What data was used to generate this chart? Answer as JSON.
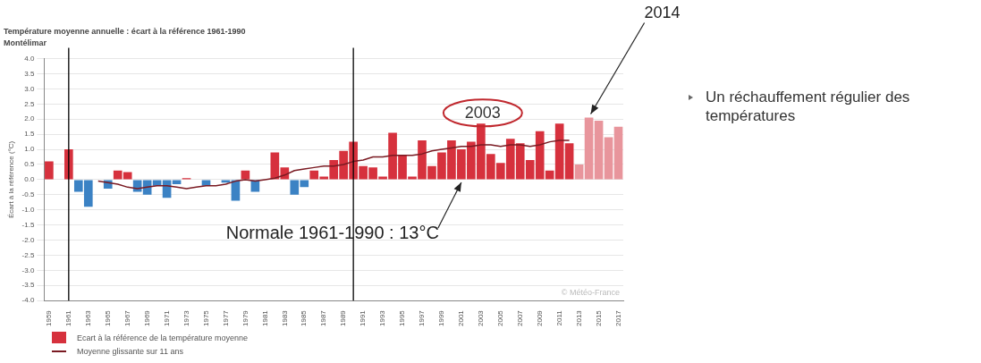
{
  "chart_data": {
    "type": "bar",
    "title": "Température moyenne annuelle : écart à la référence 1961-1990",
    "subtitle": "Montélimar",
    "ylabel": "Écart à la référence (°C)",
    "x": [
      1959,
      1960,
      1961,
      1962,
      1963,
      1964,
      1965,
      1966,
      1967,
      1968,
      1969,
      1970,
      1971,
      1972,
      1973,
      1974,
      1975,
      1976,
      1977,
      1978,
      1979,
      1980,
      1981,
      1982,
      1983,
      1984,
      1985,
      1986,
      1987,
      1988,
      1989,
      1990,
      1991,
      1992,
      1993,
      1994,
      1995,
      1996,
      1997,
      1998,
      1999,
      2000,
      2001,
      2002,
      2003,
      2004,
      2005,
      2006,
      2007,
      2008,
      2009,
      2010,
      2011,
      2012,
      2013,
      2014,
      2015,
      2016,
      2017
    ],
    "series": [
      {
        "name": "Ecart à la référence de la température moyenne",
        "color": "#d6313d",
        "values": [
          0.6,
          0,
          1.0,
          -0.4,
          -0.9,
          0,
          -0.3,
          0.3,
          0.25,
          -0.4,
          -0.5,
          -0.2,
          -0.6,
          -0.15,
          0.05,
          0,
          -0.2,
          0,
          -0.1,
          -0.7,
          0.3,
          -0.4,
          0,
          0.9,
          0.4,
          -0.5,
          -0.25,
          0.3,
          0.1,
          0.65,
          0.95,
          1.25,
          0.45,
          0.4,
          0.1,
          1.55,
          0.8,
          0.1,
          1.3,
          0.45,
          0.9,
          1.3,
          1.0,
          1.25,
          1.85,
          0.85,
          0.55,
          1.35,
          1.2,
          0.65,
          1.6,
          0.3,
          1.85,
          1.2,
          0.5,
          2.05,
          1.95,
          1.4,
          1.75
        ],
        "colors": [
          "#d6313d",
          "#d6313d",
          "#d6313d",
          "#3b82c4",
          "#3b82c4",
          "#d6313d",
          "#3b82c4",
          "#d6313d",
          "#d6313d",
          "#3b82c4",
          "#3b82c4",
          "#3b82c4",
          "#3b82c4",
          "#3b82c4",
          "#d6313d",
          "#d6313d",
          "#3b82c4",
          "#d6313d",
          "#3b82c4",
          "#3b82c4",
          "#d6313d",
          "#3b82c4",
          "#d6313d",
          "#d6313d",
          "#d6313d",
          "#3b82c4",
          "#3b82c4",
          "#d6313d",
          "#d6313d",
          "#d6313d",
          "#d6313d",
          "#d6313d",
          "#d6313d",
          "#d6313d",
          "#d6313d",
          "#d6313d",
          "#d6313d",
          "#d6313d",
          "#d6313d",
          "#d6313d",
          "#d6313d",
          "#d6313d",
          "#d6313d",
          "#d6313d",
          "#d6313d",
          "#d6313d",
          "#d6313d",
          "#d6313d",
          "#d6313d",
          "#d6313d",
          "#d6313d",
          "#d6313d",
          "#d6313d",
          "#d6313d",
          "#e8959c",
          "#e8959c",
          "#e8959c",
          "#e8959c",
          "#e8959c"
        ]
      },
      {
        "name": "Moyenne glissante sur 11 ans",
        "type": "line",
        "color": "#7a1a22",
        "x": [
          1964,
          1965,
          1966,
          1967,
          1968,
          1969,
          1970,
          1971,
          1972,
          1973,
          1974,
          1975,
          1976,
          1977,
          1978,
          1979,
          1980,
          1981,
          1982,
          1983,
          1984,
          1985,
          1986,
          1987,
          1988,
          1989,
          1990,
          1991,
          1992,
          1993,
          1994,
          1995,
          1996,
          1997,
          1998,
          1999,
          2000,
          2001,
          2002,
          2003,
          2004,
          2005,
          2006,
          2007,
          2008,
          2009,
          2010,
          2011,
          2012
        ],
        "values": [
          -0.05,
          -0.1,
          -0.15,
          -0.25,
          -0.3,
          -0.25,
          -0.2,
          -0.2,
          -0.25,
          -0.3,
          -0.25,
          -0.2,
          -0.2,
          -0.15,
          -0.05,
          0,
          -0.05,
          0,
          0.05,
          0.15,
          0.3,
          0.35,
          0.4,
          0.45,
          0.45,
          0.5,
          0.6,
          0.65,
          0.75,
          0.75,
          0.8,
          0.8,
          0.8,
          0.85,
          0.95,
          1.0,
          1.05,
          1.1,
          1.1,
          1.15,
          1.15,
          1.1,
          1.15,
          1.15,
          1.1,
          1.15,
          1.25,
          1.3,
          1.3
        ]
      }
    ],
    "xlim": [
      1958.5,
      2017.5
    ],
    "xticks": [
      1959,
      1961,
      1963,
      1965,
      1967,
      1969,
      1971,
      1973,
      1975,
      1977,
      1979,
      1981,
      1983,
      1985,
      1987,
      1989,
      1991,
      1993,
      1995,
      1997,
      1999,
      2001,
      2003,
      2005,
      2007,
      2009,
      2011,
      2013,
      2015,
      2017
    ],
    "ylim": [
      -4,
      4
    ],
    "yticks": [
      {
        "value": -4,
        "label": "-4.0"
      },
      {
        "value": -3.5,
        "label": "-3.5"
      },
      {
        "value": -3,
        "label": "-3.0"
      },
      {
        "value": -2.5,
        "label": "-2.5"
      },
      {
        "value": -2,
        "label": "-2.0"
      },
      {
        "value": -1.5,
        "label": "-1.5"
      },
      {
        "value": -1,
        "label": "-1.0"
      },
      {
        "value": -0.5,
        "label": "-0.5"
      },
      {
        "value": 0,
        "label": "0.0"
      },
      {
        "value": 0.5,
        "label": "0.5"
      },
      {
        "value": 1,
        "label": "1.0"
      },
      {
        "value": 1.5,
        "label": "1.5"
      },
      {
        "value": 2,
        "label": "2.0"
      },
      {
        "value": 2.5,
        "label": "2.5"
      },
      {
        "value": 3,
        "label": "3.0"
      },
      {
        "value": 3.5,
        "label": "3.5"
      },
      {
        "value": 4,
        "label": "4.0"
      }
    ],
    "grid": "y",
    "legend": "bottom left",
    "line_style": "solid",
    "ref_lines": [
      {
        "axis": "x",
        "value": 1961,
        "color": "#000000"
      },
      {
        "axis": "x",
        "value": 1990,
        "color": "#000000"
      }
    ],
    "annotations": [
      {
        "text": "Normale 1961-1990 : 13°C",
        "x": 2001,
        "y": 0
      },
      {
        "text": "2003",
        "x": 2003,
        "y": 1.85
      },
      {
        "text": "2014",
        "x": 2014,
        "y": 2.05
      },
      "© Météo-France",
      "Un réchauffement régulier des températures"
    ]
  }
}
